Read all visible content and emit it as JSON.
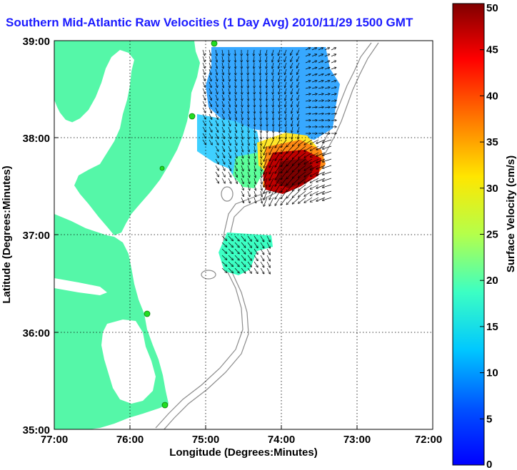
{
  "title": "Southern Mid-Atlantic Raw Velocities (1 Day Avg) 2010/11/29 1500 GMT",
  "map": {
    "x_label": "Longitude (Degrees:Minutes)",
    "y_label": "Latitude (Degrees:Minutes)",
    "lon_range": [
      -77,
      -72
    ],
    "lat_range": [
      35,
      39
    ],
    "lon_ticks": [
      "77:00",
      "76:00",
      "75:00",
      "74:00",
      "73:00",
      "72:00"
    ],
    "lat_ticks": [
      "39:00",
      "38:00",
      "37:00",
      "36:00",
      "35:00"
    ],
    "grid": "dotted",
    "land_color": "#55f7a8",
    "water_color": "#ffffff",
    "bathymetry_color": "#8c8c8c",
    "station_color": "#22dd22"
  },
  "colorbar": {
    "label": "Surface Velocity (cm/s)",
    "range": [
      0,
      50
    ],
    "ticks": [
      "50",
      "45",
      "40",
      "35",
      "30",
      "25",
      "20",
      "15",
      "10",
      "5",
      "0"
    ],
    "colormap": "jet"
  },
  "icons": [
    "velocity-arrow-icon",
    "hf-radar-station-icon"
  ]
}
